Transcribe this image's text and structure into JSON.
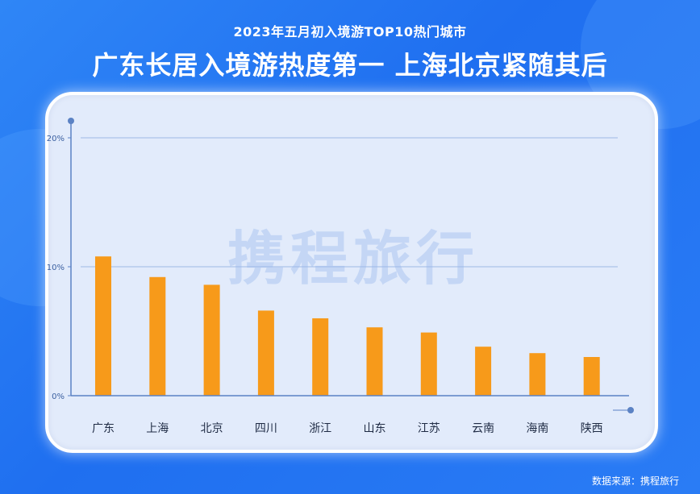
{
  "header": {
    "subtitle": "2023年五月初入境游TOP10热门城市",
    "title": "广东长居入境游热度第一  上海北京紧随其后"
  },
  "watermark": "携程旅行",
  "footer": {
    "source": "数据来源：携程旅行"
  },
  "colors": {
    "bar": "#f79a1a",
    "axis": "#5b82c4",
    "grid": "#9db8e6",
    "tick_text": "#3a5fa0"
  },
  "chart_data": {
    "type": "bar",
    "categories": [
      "广东",
      "上海",
      "北京",
      "四川",
      "浙江",
      "山东",
      "江苏",
      "云南",
      "海南",
      "陕西"
    ],
    "values": [
      10.8,
      9.2,
      8.6,
      6.6,
      6.0,
      5.3,
      4.9,
      3.8,
      3.3,
      3.0
    ],
    "ylim": [
      0,
      20
    ],
    "yticks": [
      0,
      10,
      20
    ],
    "ytick_labels": [
      "0%",
      "10%",
      "20%"
    ],
    "grid": true,
    "xlabel": "",
    "ylabel": ""
  }
}
